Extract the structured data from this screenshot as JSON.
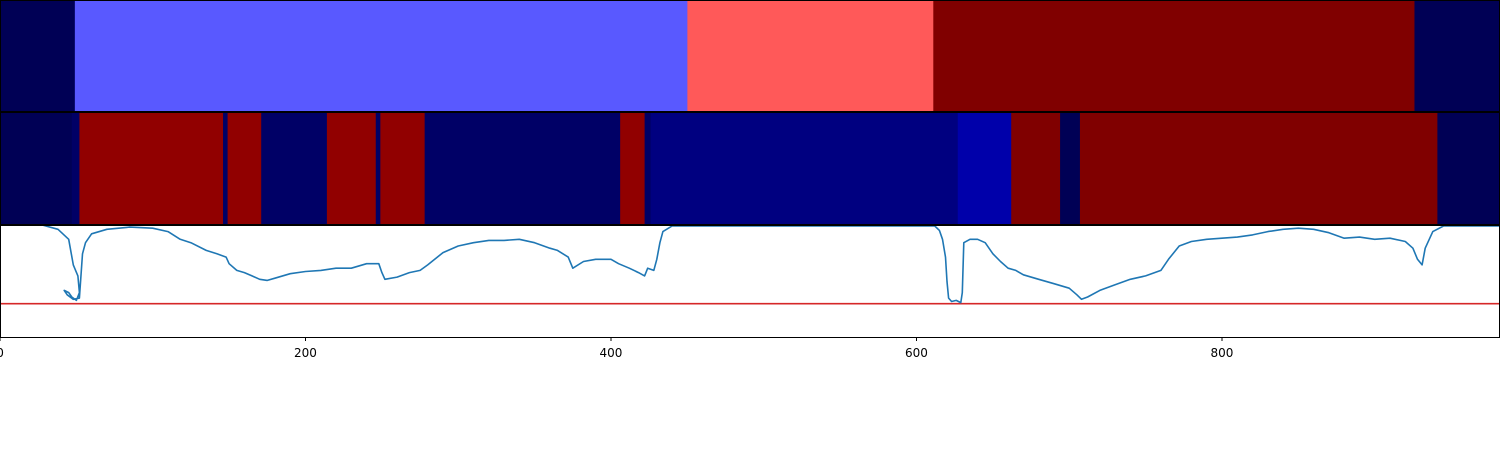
{
  "chart_data": {
    "type": "heatmap",
    "x_axis": {
      "ticks": [
        0,
        200,
        400,
        600,
        800
      ],
      "xlim": [
        0,
        982
      ]
    },
    "colors": {
      "navy": "#000055",
      "navy2": "#000066",
      "blue": "#000080",
      "blue_bright": "#0000aa",
      "blue_light": "#5959ff",
      "red_light": "#ff5959",
      "red": "#910000",
      "maroon": "#800000",
      "line": "#1f77b4",
      "threshold": "#d62728"
    },
    "top_strip": [
      {
        "start": 0,
        "end": 49,
        "color": "navy"
      },
      {
        "start": 49,
        "end": 450,
        "color": "blue_light"
      },
      {
        "start": 450,
        "end": 611,
        "color": "red_light"
      },
      {
        "start": 611,
        "end": 926,
        "color": "maroon"
      },
      {
        "start": 926,
        "end": 982,
        "color": "navy"
      }
    ],
    "middle_strip": [
      {
        "start": 0,
        "end": 47,
        "color": "navy"
      },
      {
        "start": 47,
        "end": 52,
        "color": "navy2"
      },
      {
        "start": 52,
        "end": 146,
        "color": "red"
      },
      {
        "start": 146,
        "end": 149,
        "color": "navy2"
      },
      {
        "start": 149,
        "end": 171,
        "color": "red"
      },
      {
        "start": 171,
        "end": 214,
        "color": "navy2"
      },
      {
        "start": 214,
        "end": 246,
        "color": "red"
      },
      {
        "start": 246,
        "end": 249,
        "color": "navy2"
      },
      {
        "start": 249,
        "end": 278,
        "color": "red"
      },
      {
        "start": 278,
        "end": 406,
        "color": "navy2"
      },
      {
        "start": 406,
        "end": 422,
        "color": "red"
      },
      {
        "start": 422,
        "end": 426,
        "color": "navy2"
      },
      {
        "start": 426,
        "end": 627,
        "color": "blue"
      },
      {
        "start": 627,
        "end": 662,
        "color": "blue_bright"
      },
      {
        "start": 662,
        "end": 694,
        "color": "maroon"
      },
      {
        "start": 694,
        "end": 707,
        "color": "navy"
      },
      {
        "start": 707,
        "end": 941,
        "color": "maroon"
      },
      {
        "start": 941,
        "end": 982,
        "color": "navy"
      }
    ],
    "line_series": {
      "ylim": [
        0,
        1
      ],
      "threshold": 0.3,
      "points": [
        [
          0,
          1.04
        ],
        [
          20,
          1.04
        ],
        [
          30,
          1.0
        ],
        [
          38,
          0.97
        ],
        [
          45,
          0.88
        ],
        [
          48,
          0.65
        ],
        [
          51,
          0.55
        ],
        [
          52,
          0.4
        ],
        [
          50,
          0.33
        ],
        [
          47,
          0.36
        ],
        [
          45,
          0.4
        ],
        [
          42,
          0.42
        ],
        [
          44,
          0.38
        ],
        [
          48,
          0.34
        ],
        [
          52,
          0.35
        ],
        [
          54,
          0.75
        ],
        [
          56,
          0.85
        ],
        [
          60,
          0.93
        ],
        [
          70,
          0.97
        ],
        [
          85,
          0.99
        ],
        [
          100,
          0.98
        ],
        [
          110,
          0.95
        ],
        [
          118,
          0.88
        ],
        [
          125,
          0.85
        ],
        [
          135,
          0.78
        ],
        [
          142,
          0.75
        ],
        [
          148,
          0.72
        ],
        [
          150,
          0.66
        ],
        [
          155,
          0.6
        ],
        [
          160,
          0.58
        ],
        [
          165,
          0.55
        ],
        [
          170,
          0.52
        ],
        [
          175,
          0.51
        ],
        [
          180,
          0.53
        ],
        [
          190,
          0.57
        ],
        [
          200,
          0.59
        ],
        [
          210,
          0.6
        ],
        [
          220,
          0.62
        ],
        [
          230,
          0.62
        ],
        [
          240,
          0.66
        ],
        [
          248,
          0.66
        ],
        [
          250,
          0.58
        ],
        [
          252,
          0.52
        ],
        [
          260,
          0.54
        ],
        [
          268,
          0.58
        ],
        [
          275,
          0.6
        ],
        [
          280,
          0.65
        ],
        [
          290,
          0.76
        ],
        [
          300,
          0.82
        ],
        [
          310,
          0.85
        ],
        [
          320,
          0.87
        ],
        [
          330,
          0.87
        ],
        [
          340,
          0.88
        ],
        [
          350,
          0.85
        ],
        [
          360,
          0.8
        ],
        [
          365,
          0.78
        ],
        [
          372,
          0.72
        ],
        [
          375,
          0.62
        ],
        [
          382,
          0.68
        ],
        [
          390,
          0.7
        ],
        [
          400,
          0.7
        ],
        [
          405,
          0.66
        ],
        [
          412,
          0.62
        ],
        [
          418,
          0.58
        ],
        [
          422,
          0.55
        ],
        [
          424,
          0.62
        ],
        [
          428,
          0.6
        ],
        [
          430,
          0.7
        ],
        [
          432,
          0.85
        ],
        [
          434,
          0.95
        ],
        [
          440,
          1.0
        ],
        [
          450,
          1.0
        ],
        [
          500,
          1.0
        ],
        [
          550,
          1.0
        ],
        [
          600,
          1.0
        ],
        [
          612,
          1.0
        ],
        [
          615,
          0.96
        ],
        [
          617,
          0.88
        ],
        [
          619,
          0.72
        ],
        [
          620,
          0.5
        ],
        [
          621,
          0.35
        ],
        [
          623,
          0.32
        ],
        [
          626,
          0.33
        ],
        [
          629,
          0.31
        ],
        [
          630,
          0.4
        ],
        [
          631,
          0.85
        ],
        [
          635,
          0.88
        ],
        [
          640,
          0.88
        ],
        [
          645,
          0.85
        ],
        [
          650,
          0.75
        ],
        [
          655,
          0.68
        ],
        [
          660,
          0.62
        ],
        [
          665,
          0.6
        ],
        [
          670,
          0.56
        ],
        [
          680,
          0.52
        ],
        [
          690,
          0.48
        ],
        [
          700,
          0.44
        ],
        [
          705,
          0.38
        ],
        [
          708,
          0.34
        ],
        [
          712,
          0.36
        ],
        [
          720,
          0.42
        ],
        [
          730,
          0.47
        ],
        [
          740,
          0.52
        ],
        [
          750,
          0.55
        ],
        [
          760,
          0.6
        ],
        [
          765,
          0.7
        ],
        [
          772,
          0.82
        ],
        [
          780,
          0.86
        ],
        [
          790,
          0.88
        ],
        [
          800,
          0.89
        ],
        [
          810,
          0.9
        ],
        [
          820,
          0.92
        ],
        [
          830,
          0.95
        ],
        [
          840,
          0.97
        ],
        [
          850,
          0.98
        ],
        [
          860,
          0.97
        ],
        [
          870,
          0.94
        ],
        [
          880,
          0.89
        ],
        [
          890,
          0.9
        ],
        [
          900,
          0.88
        ],
        [
          910,
          0.89
        ],
        [
          920,
          0.86
        ],
        [
          925,
          0.8
        ],
        [
          928,
          0.7
        ],
        [
          931,
          0.65
        ],
        [
          933,
          0.8
        ],
        [
          938,
          0.95
        ],
        [
          945,
          1.0
        ],
        [
          982,
          1.0
        ]
      ]
    }
  }
}
